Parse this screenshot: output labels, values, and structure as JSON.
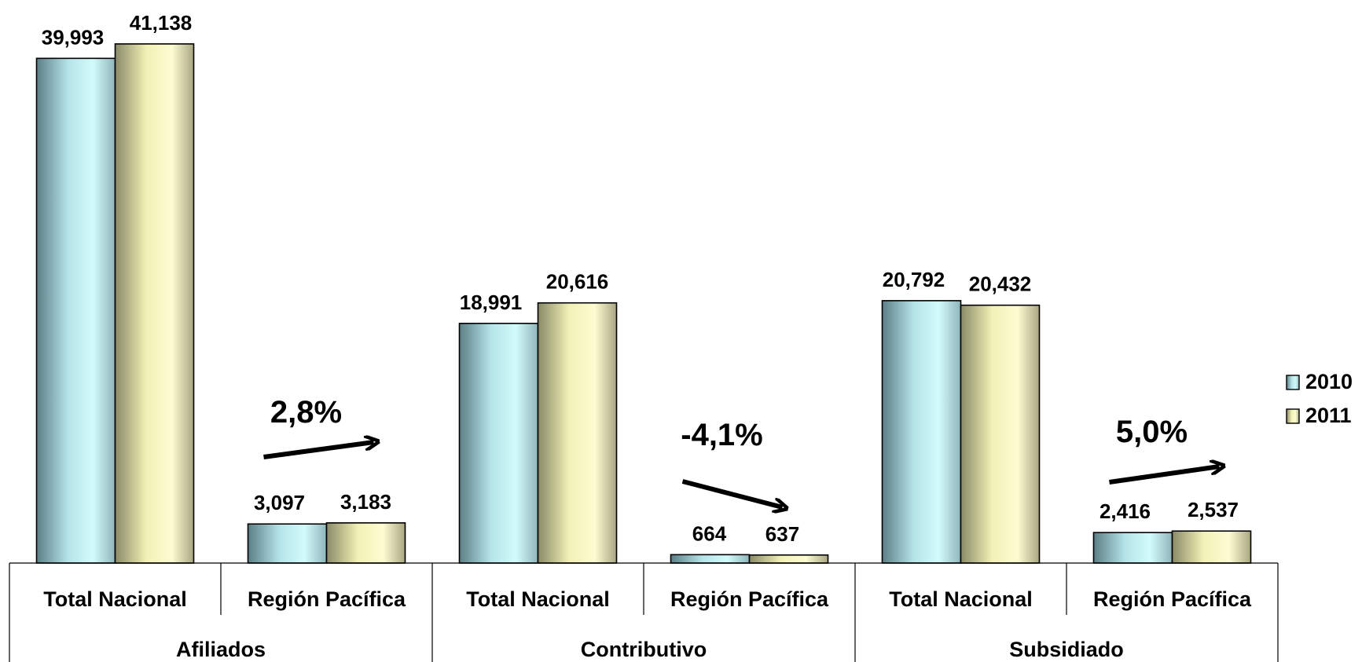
{
  "chart_data": {
    "type": "bar",
    "title": "",
    "xlabel": "",
    "ylabel": "",
    "ylim": [
      0,
      43000
    ],
    "grid": false,
    "legend_position": "right",
    "groups": [
      "Afiliados",
      "Contributivo",
      "Subsidiado"
    ],
    "categories": [
      "Total Nacional",
      "Región Pacífica",
      "Total Nacional",
      "Región Pacífica",
      "Total Nacional",
      "Región Pacífica"
    ],
    "series": [
      {
        "name": "2010",
        "color": "#c9f5f7",
        "values": [
          39993,
          3097,
          18991,
          664,
          20792,
          2416
        ],
        "labels": [
          "39,993",
          "3,097",
          "18,991",
          "664",
          "20,792",
          "2,416"
        ]
      },
      {
        "name": "2011",
        "color": "#fbfac6",
        "values": [
          41138,
          3183,
          20616,
          637,
          20432,
          2537
        ],
        "labels": [
          "41,138",
          "3,183",
          "20,616",
          "637",
          "20,432",
          "2,537"
        ]
      }
    ],
    "annotations": [
      {
        "text": "2,8%",
        "category_index": 1,
        "direction": "up"
      },
      {
        "text": "-4,1%",
        "category_index": 3,
        "direction": "down"
      },
      {
        "text": "5,0%",
        "category_index": 5,
        "direction": "up"
      }
    ]
  }
}
